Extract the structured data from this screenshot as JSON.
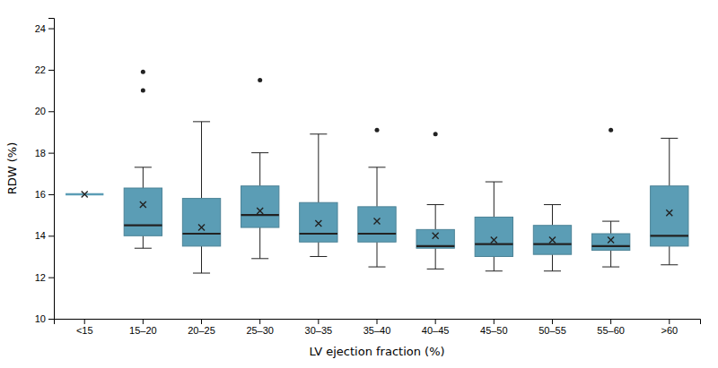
{
  "chart_data": {
    "type": "box",
    "xlabel": "LV ejection fraction (%)",
    "ylabel": "RDW (%)",
    "categories": [
      "<15",
      "15–20",
      "20–25",
      "25–30",
      "30–35",
      "35–40",
      "40–45",
      "45–50",
      "50–55",
      "55–60",
      ">60"
    ],
    "boxes": [
      {
        "whislo": 16.0,
        "q1": 16.0,
        "med": 16.0,
        "q3": 16.0,
        "whishi": 16.0,
        "mean": 16.0,
        "fliers": []
      },
      {
        "whislo": 13.4,
        "q1": 14.0,
        "med": 14.5,
        "q3": 16.3,
        "whishi": 17.3,
        "mean": 15.5,
        "fliers": [
          21.0,
          21.9
        ]
      },
      {
        "whislo": 12.2,
        "q1": 13.5,
        "med": 14.1,
        "q3": 15.8,
        "whishi": 19.5,
        "mean": 14.4,
        "fliers": []
      },
      {
        "whislo": 12.9,
        "q1": 14.4,
        "med": 15.0,
        "q3": 16.4,
        "whishi": 18.0,
        "mean": 15.2,
        "fliers": [
          21.5
        ]
      },
      {
        "whislo": 13.0,
        "q1": 13.7,
        "med": 14.1,
        "q3": 15.6,
        "whishi": 18.9,
        "mean": 14.6,
        "fliers": []
      },
      {
        "whislo": 12.5,
        "q1": 13.7,
        "med": 14.1,
        "q3": 15.4,
        "whishi": 17.3,
        "mean": 14.7,
        "fliers": [
          19.1
        ]
      },
      {
        "whislo": 12.4,
        "q1": 13.4,
        "med": 13.5,
        "q3": 14.3,
        "whishi": 15.5,
        "mean": 14.0,
        "fliers": [
          18.9
        ]
      },
      {
        "whislo": 12.3,
        "q1": 13.0,
        "med": 13.6,
        "q3": 14.9,
        "whishi": 16.6,
        "mean": 13.8,
        "fliers": []
      },
      {
        "whislo": 12.3,
        "q1": 13.1,
        "med": 13.6,
        "q3": 14.5,
        "whishi": 15.5,
        "mean": 13.8,
        "fliers": []
      },
      {
        "whislo": 12.5,
        "q1": 13.3,
        "med": 13.5,
        "q3": 14.1,
        "whishi": 14.7,
        "mean": 13.8,
        "fliers": [
          19.1
        ]
      },
      {
        "whislo": 12.6,
        "q1": 13.5,
        "med": 14.0,
        "q3": 16.4,
        "whishi": 18.7,
        "mean": 15.1,
        "fliers": []
      }
    ],
    "ylim": [
      10,
      24.5
    ],
    "yticks": [
      10,
      12,
      14,
      16,
      18,
      20,
      22,
      24
    ],
    "color": "#5b9db5",
    "grid": false
  }
}
